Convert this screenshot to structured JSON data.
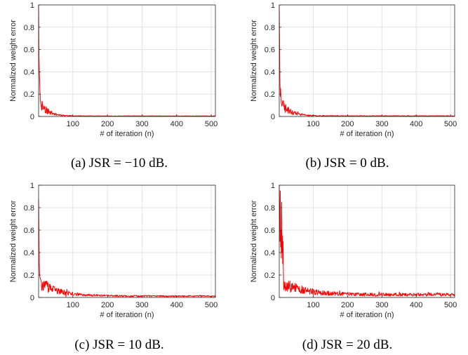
{
  "chart_data": [
    {
      "type": "line",
      "caption": "(a) JSR = −10 dB.",
      "xlabel": "# of iteration (n)",
      "ylabel": "Normalized weight error",
      "xlim": [
        1,
        512
      ],
      "ylim": [
        0,
        1
      ],
      "xticks": [
        100,
        200,
        300,
        400,
        500
      ],
      "yticks": [
        0,
        0.2,
        0.4,
        0.6,
        0.8,
        1
      ],
      "ytick_labels": [
        "0",
        "0.2",
        "0.4",
        "0.6",
        "0.8",
        "1"
      ],
      "grid": true,
      "line_color": "#ff0000",
      "decay": {
        "start": 1.0,
        "early": [
          0.55,
          0.42,
          0.33,
          0.22,
          0.15,
          0.12,
          0.1
        ],
        "tail": 0.004,
        "rate": 0.045,
        "noise": 0.55,
        "seed": 11
      }
    },
    {
      "type": "line",
      "caption": "(b) JSR = 0 dB.",
      "xlabel": "# of iteration (n)",
      "ylabel": "Normalized weight error",
      "xlim": [
        1,
        512
      ],
      "ylim": [
        0,
        1
      ],
      "xticks": [
        100,
        200,
        300,
        400,
        500
      ],
      "yticks": [
        0,
        0.2,
        0.4,
        0.6,
        0.8,
        1
      ],
      "ytick_labels": [
        "0",
        "0.2",
        "0.4",
        "0.6",
        "0.8",
        "1"
      ],
      "grid": true,
      "line_color": "#ff0000",
      "decay": {
        "start": 1.0,
        "early": [
          0.6,
          0.3,
          0.18,
          0.25,
          0.15,
          0.12,
          0.1
        ],
        "tail": 0.005,
        "rate": 0.04,
        "noise": 0.6,
        "seed": 23
      }
    },
    {
      "type": "line",
      "caption": "(c) JSR = 10 dB.",
      "xlabel": "# of iteration (n)",
      "ylabel": "Normalized weight error",
      "xlim": [
        1,
        512
      ],
      "ylim": [
        0,
        1
      ],
      "xticks": [
        100,
        200,
        300,
        400,
        500
      ],
      "yticks": [
        0,
        0.2,
        0.4,
        0.6,
        0.8,
        1
      ],
      "ytick_labels": [
        "0",
        "0.2",
        "0.4",
        "0.6",
        "0.8",
        "1"
      ],
      "grid": true,
      "line_color": "#ff0000",
      "decay": {
        "start": 0.88,
        "early": [
          0.6,
          0.3,
          0.2,
          0.18,
          0.17,
          0.16,
          0.15
        ],
        "tail": 0.012,
        "rate": 0.018,
        "noise": 0.5,
        "seed": 37
      }
    },
    {
      "type": "line",
      "caption": "(d) JSR = 20 dB.",
      "xlabel": "# of iteration (n)",
      "ylabel": "Normalized weight error",
      "xlim": [
        1,
        512
      ],
      "ylim": [
        0,
        1
      ],
      "xticks": [
        100,
        200,
        300,
        400,
        500
      ],
      "yticks": [
        0,
        0.2,
        0.4,
        0.6,
        0.8,
        1
      ],
      "ytick_labels": [
        "0",
        "0.2",
        "0.4",
        "0.6",
        "0.8",
        "1"
      ],
      "grid": true,
      "line_color": "#ff0000",
      "decay": {
        "start": 1.0,
        "early": [
          0.75,
          0.5,
          0.95,
          0.45,
          0.6,
          0.35,
          0.85,
          0.4,
          0.55,
          0.3,
          0.5,
          0.25
        ],
        "tail": 0.025,
        "rate": 0.016,
        "noise": 0.55,
        "seed": 53
      }
    }
  ]
}
